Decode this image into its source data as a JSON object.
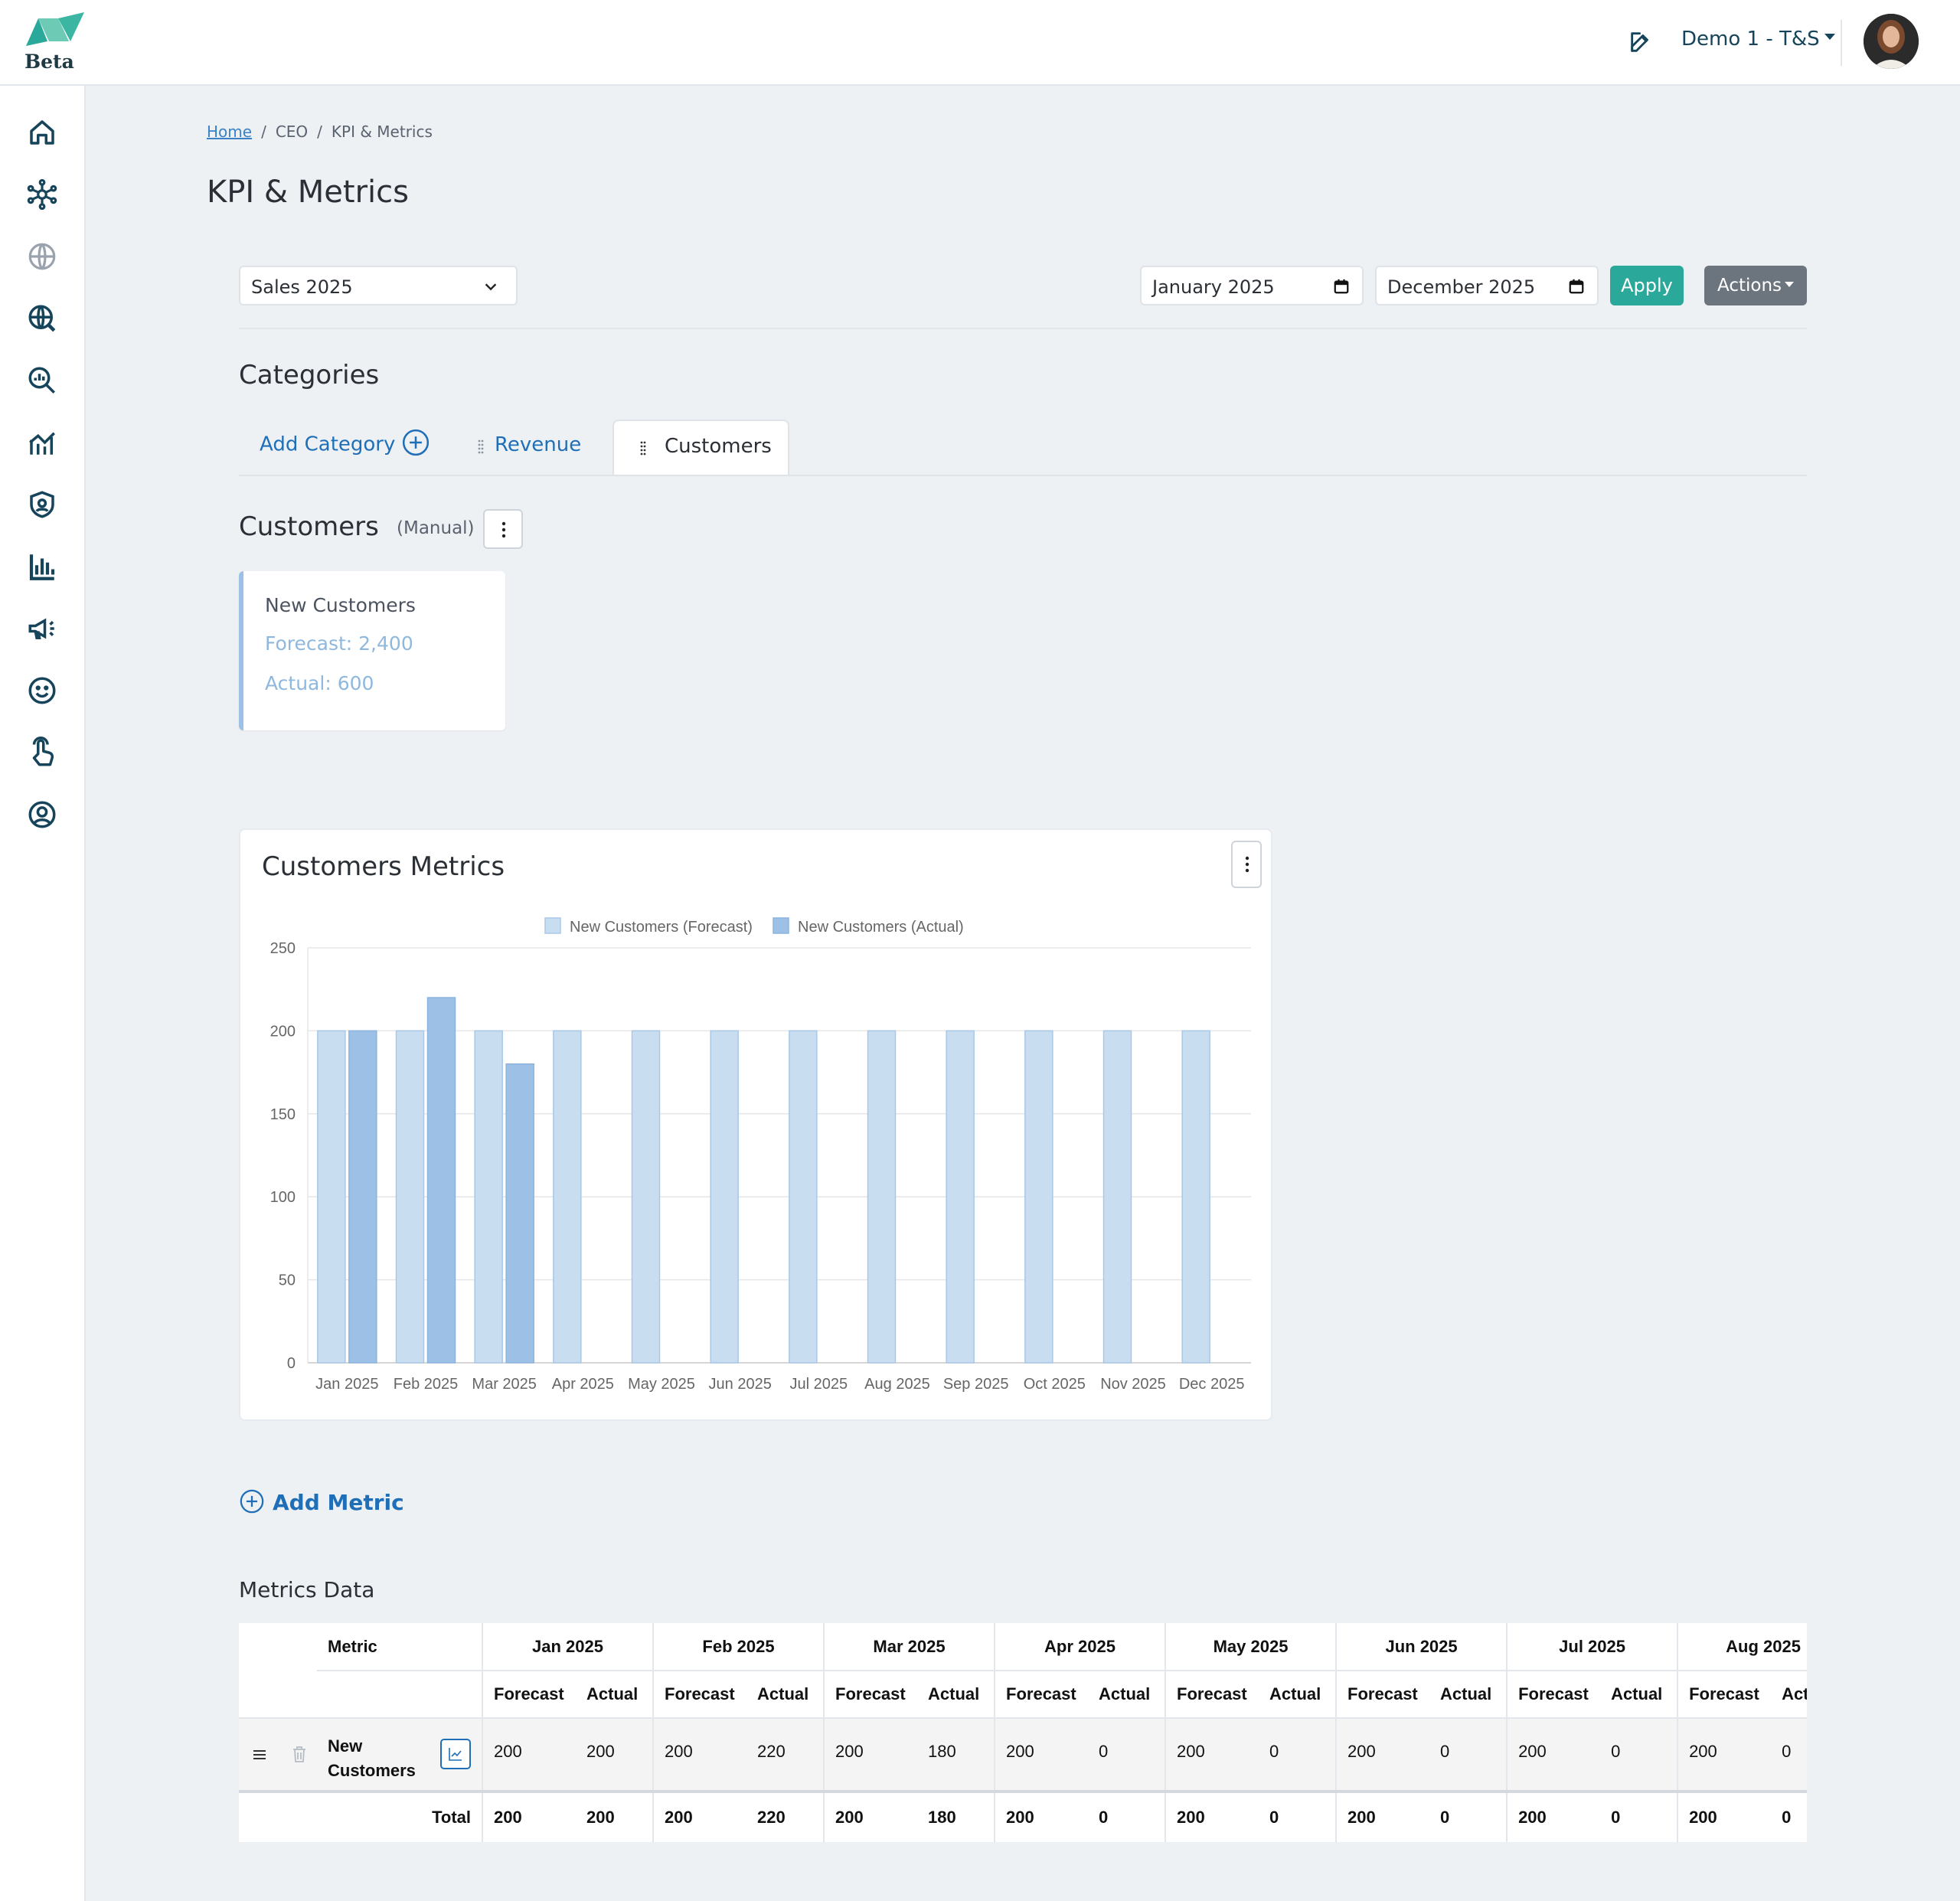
{
  "app": {
    "badge": "Beta",
    "workspace": "Demo 1 - T&S",
    "colors": {
      "accent": "#2aa89a",
      "link": "#1f6fb8",
      "forecast": "#c9ddf0",
      "actual": "#9dc1e6"
    }
  },
  "icons": {
    "logo": "n-logo-icon",
    "edit": "edit-icon",
    "sidebar": [
      "home-icon",
      "network-icon",
      "globe-icon",
      "globe-analytics-icon",
      "search-analytics-icon",
      "trend-chart-icon",
      "shield-icon",
      "bar-chart-icon",
      "megaphone-icon",
      "smile-icon",
      "pointer-hand-icon",
      "user-circle-icon"
    ]
  },
  "breadcrumb": {
    "home": "Home",
    "level1": "CEO",
    "current": "KPI & Metrics"
  },
  "page": {
    "title": "KPI & Metrics"
  },
  "filters": {
    "dataset": "Sales 2025",
    "start_date": "January 2025",
    "end_date": "December 2025",
    "apply_label": "Apply",
    "actions_label": "Actions"
  },
  "categories": {
    "title": "Categories",
    "add_label": "Add Category",
    "tabs": [
      {
        "label": "Revenue"
      },
      {
        "label": "Customers"
      }
    ],
    "active": "Customers"
  },
  "category": {
    "name": "Customers",
    "mode": "(Manual)",
    "card": {
      "name": "New Customers",
      "forecast": "Forecast: 2,400",
      "actual": "Actual: 600"
    }
  },
  "chart_data": {
    "type": "bar",
    "title": "Customers Metrics",
    "categories": [
      "Jan 2025",
      "Feb 2025",
      "Mar 2025",
      "Apr 2025",
      "May 2025",
      "Jun 2025",
      "Jul 2025",
      "Aug 2025",
      "Sep 2025",
      "Oct 2025",
      "Nov 2025",
      "Dec 2025"
    ],
    "series": [
      {
        "name": "New Customers (Forecast)",
        "color": "#c9ddf0",
        "values": [
          200,
          200,
          200,
          200,
          200,
          200,
          200,
          200,
          200,
          200,
          200,
          200
        ]
      },
      {
        "name": "New Customers (Actual)",
        "color": "#9dc1e6",
        "values": [
          200,
          220,
          180,
          0,
          0,
          0,
          0,
          0,
          0,
          0,
          0,
          0
        ]
      }
    ],
    "ylim": [
      0,
      250
    ],
    "yticks": [
      "0",
      "50",
      "100",
      "150",
      "200",
      "250"
    ],
    "legend": "top",
    "grid": true
  },
  "add_metric_label": "Add Metric",
  "table": {
    "title": "Metrics Data",
    "metric_header": "Metric",
    "forecast_label": "Forecast",
    "actual_label": "Actual",
    "months": [
      "Jan 2025",
      "Feb 2025",
      "Mar 2025",
      "Apr 2025",
      "May 2025",
      "Jun 2025",
      "Jul 2025",
      "Aug 2025"
    ],
    "rows": [
      {
        "metric": "New Customers",
        "values": [
          [
            "200",
            "200"
          ],
          [
            "200",
            "220"
          ],
          [
            "200",
            "180"
          ],
          [
            "200",
            "0"
          ],
          [
            "200",
            "0"
          ],
          [
            "200",
            "0"
          ],
          [
            "200",
            "0"
          ],
          [
            "200",
            "0"
          ]
        ]
      }
    ],
    "total": {
      "label": "Total",
      "values": [
        [
          "200",
          "200"
        ],
        [
          "200",
          "220"
        ],
        [
          "200",
          "180"
        ],
        [
          "200",
          "0"
        ],
        [
          "200",
          "0"
        ],
        [
          "200",
          "0"
        ],
        [
          "200",
          "0"
        ],
        [
          "200",
          "0"
        ]
      ]
    }
  }
}
